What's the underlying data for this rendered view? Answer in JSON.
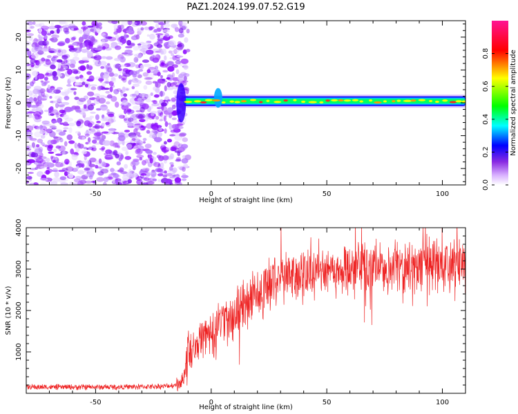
{
  "title": "PAZ1.2024.199.07.52.G19",
  "chart_data": [
    {
      "type": "heatmap",
      "xlabel": "Height of straight line (km)",
      "ylabel": "Frequency (Hz)",
      "xlim": [
        -80,
        110
      ],
      "ylim": [
        -25,
        25
      ],
      "xticks": [
        -50,
        0,
        50,
        100
      ],
      "yticks": [
        -20,
        -10,
        0,
        10,
        20
      ],
      "signal_start_km": -12,
      "signal_frequency_hz": 0.5,
      "colorbar": {
        "label": "Normalized spectral amplitude",
        "range": [
          0.0,
          1.0
        ],
        "ticks": [
          0.0,
          0.2,
          0.4,
          0.6,
          0.8
        ],
        "colors": [
          "#ffffff",
          "#8a2be2",
          "#0000ff",
          "#00ffff",
          "#00ff00",
          "#ffff00",
          "#ff0000",
          "#ff1493"
        ]
      }
    },
    {
      "type": "line",
      "xlabel": "Height of straight line (km)",
      "ylabel": "SNR (10 * v/v)",
      "xlim": [
        -80,
        110
      ],
      "ylim": [
        0,
        4000
      ],
      "xticks": [
        -50,
        0,
        50,
        100
      ],
      "yticks": [
        1000,
        2000,
        3000,
        4000
      ],
      "color": "#ee2222",
      "x": [
        -80,
        -60,
        -40,
        -20,
        -15,
        -12,
        -10,
        -5,
        0,
        5,
        10,
        15,
        20,
        25,
        30,
        40,
        50,
        60,
        70,
        80,
        90,
        100,
        110
      ],
      "values": [
        150,
        150,
        150,
        170,
        200,
        350,
        1000,
        1300,
        1500,
        1700,
        1900,
        2150,
        2400,
        2650,
        2850,
        2900,
        2950,
        2980,
        3000,
        3030,
        3060,
        3080,
        3100
      ],
      "noise_amplitude": 500
    }
  ]
}
